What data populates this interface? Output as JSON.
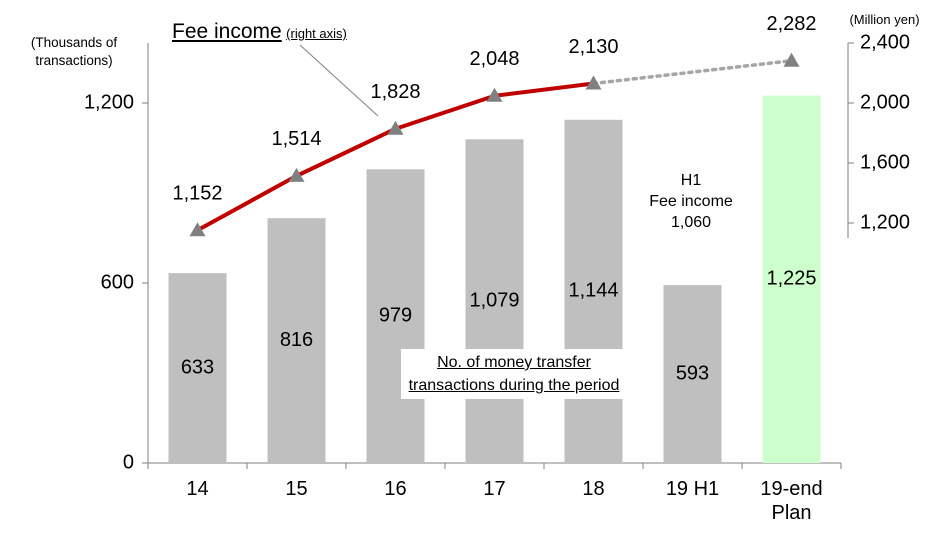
{
  "chart_data": {
    "type": "bar",
    "categories": [
      "14",
      "15",
      "16",
      "17",
      "18",
      "19 H1",
      "19-end Plan"
    ],
    "series": [
      {
        "name": "No. of money transfer transactions during the period",
        "type": "bar",
        "color": "#bfbfbf",
        "colors": [
          "#bfbfbf",
          "#bfbfbf",
          "#bfbfbf",
          "#bfbfbf",
          "#bfbfbf",
          "#bfbfbf",
          "#ccffcc"
        ],
        "values": [
          633,
          816,
          979,
          1079,
          1144,
          593,
          1225
        ],
        "value_labels": [
          "633",
          "816",
          "979",
          "1,079",
          "1,144",
          "593",
          "1,225"
        ]
      },
      {
        "name": "Fee income",
        "type": "line",
        "axis": "y2",
        "color": "#c00000",
        "marker_color": "#808080",
        "plan_color": "#a6a6a6",
        "values": [
          1152,
          1514,
          1828,
          2048,
          2130,
          null,
          2282
        ],
        "value_labels": [
          "1,152",
          "1,514",
          "1,828",
          "2,048",
          "2,130",
          null,
          "2,282"
        ]
      }
    ],
    "fee_income_note": "(right axis)",
    "ylabel": "(Thousands of transactions)",
    "y2label": "(Million yen)",
    "h1_note": [
      "H1",
      "Fee income",
      "1,060"
    ],
    "ylim": [
      0,
      1400
    ],
    "yticks": [
      0,
      600,
      {
        "value": 1200,
        "label": "1,200"
      }
    ],
    "y2lim": [
      -400,
      2400
    ],
    "y2ticks": [
      {
        "value": 1200,
        "label": "1,200"
      },
      {
        "value": 1600,
        "label": "1,600"
      },
      {
        "value": 2000,
        "label": "2,000"
      },
      {
        "value": 2400,
        "label": "2,400"
      }
    ]
  }
}
